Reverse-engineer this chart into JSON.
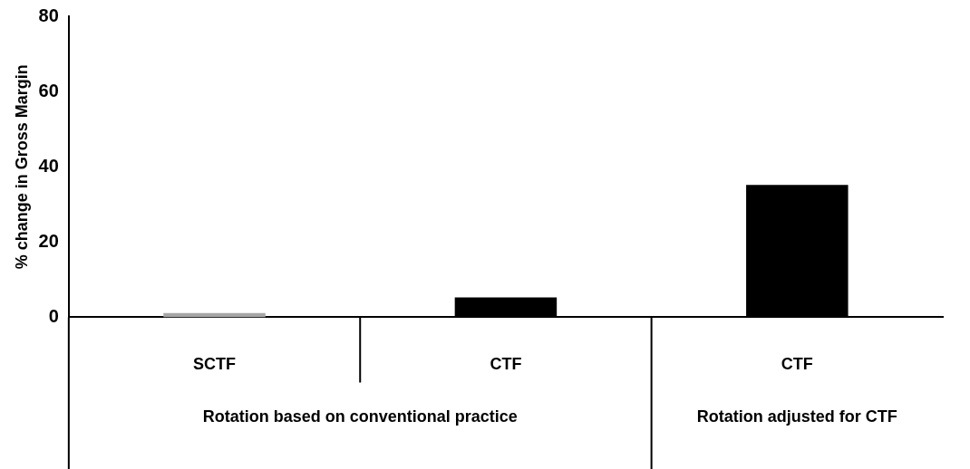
{
  "chart_data": {
    "type": "bar",
    "ylabel": "% change in Gross Margin",
    "categories": [
      "SCTF",
      "CTF",
      "CTF"
    ],
    "values": [
      1.1,
      5.3,
      35.2
    ],
    "colors": [
      "#a6a6a6",
      "#000000",
      "#000000"
    ],
    "ylim": [
      0,
      80
    ],
    "yticks": [
      0,
      20,
      40,
      60,
      80
    ],
    "grid": false,
    "legend": false,
    "annotations": [
      "Rotation based on conventional practice",
      "Rotation adjusted for CTF"
    ]
  }
}
